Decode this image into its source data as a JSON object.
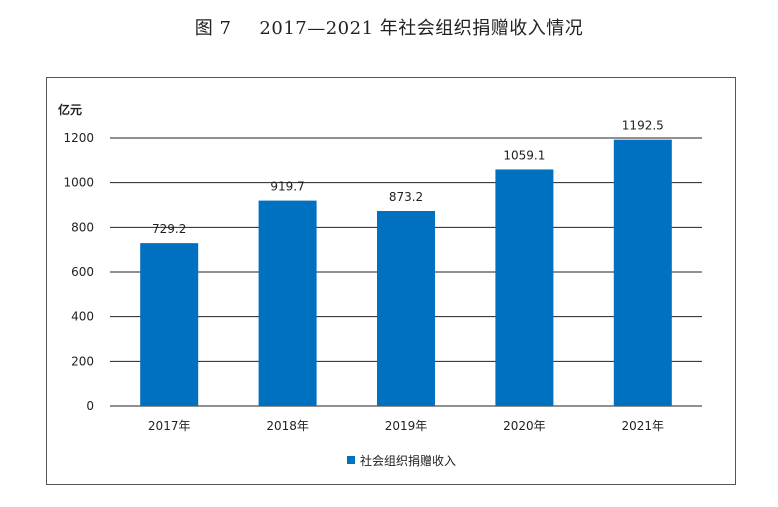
{
  "figure": {
    "number": "图 7",
    "title": "2017—2021 年社会组织捐赠收入情况"
  },
  "chart_data": {
    "type": "bar",
    "unit_label": "亿元",
    "categories": [
      "2017年",
      "2018年",
      "2019年",
      "2020年",
      "2021年"
    ],
    "series": [
      {
        "name": "社会组织捐赠收入",
        "values": [
          729.2,
          919.7,
          873.2,
          1059.1,
          1192.5
        ],
        "color": "#0070C0"
      }
    ],
    "data_labels": [
      "729.2",
      "919.7",
      "873.2",
      "1059.1",
      "1192.5"
    ],
    "ylim": [
      0,
      1200
    ],
    "yticks": [
      0,
      200,
      400,
      600,
      800,
      1000,
      1200
    ],
    "grid": true,
    "legend_position": "bottom-center"
  },
  "colors": {
    "bar": "#0070C0",
    "grid": "#222222"
  }
}
